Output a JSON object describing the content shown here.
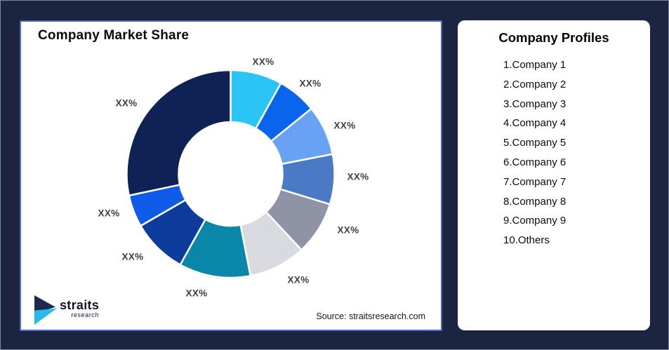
{
  "page": {
    "background_color": "#1b2541"
  },
  "chart_card": {
    "title": "Company Market Share",
    "source": "Source: straitsresearch.com",
    "logo": {
      "line1": "straits",
      "line2": "research"
    },
    "border_color": "#4b6cc3"
  },
  "profiles_card": {
    "title": "Company Profiles",
    "items": [
      "1.Company 1",
      "2.Company 2",
      "3.Company 3",
      "4.Company 4",
      "5.Company 5",
      "6.Company 6",
      "7.Company 7",
      "8.Company 8",
      "9.Company 9",
      "10.Others"
    ]
  },
  "chart_data": {
    "type": "pie",
    "subtype": "donut",
    "title": "Company Market Share",
    "start_angle": "12-o-clock",
    "direction": "clockwise",
    "inner_radius_ratio": 0.5,
    "values_hidden_as": "XX%",
    "segments": [
      {
        "name": "Company 1",
        "label": "XX%",
        "color": "#2bc5f5",
        "angle_deg": 29
      },
      {
        "name": "Company 2",
        "label": "XX%",
        "color": "#0a64ec",
        "angle_deg": 22
      },
      {
        "name": "Company 3",
        "label": "XX%",
        "color": "#69a1f4",
        "angle_deg": 28
      },
      {
        "name": "Company 4",
        "label": "XX%",
        "color": "#4a7ac6",
        "angle_deg": 28
      },
      {
        "name": "Company 5",
        "label": "XX%",
        "color": "#8e94a5",
        "angle_deg": 30
      },
      {
        "name": "Company 6",
        "label": "XX%",
        "color": "#d8dae0",
        "angle_deg": 32
      },
      {
        "name": "Company 7",
        "label": "XX%",
        "color": "#0a86a8",
        "angle_deg": 40
      },
      {
        "name": "Company 8",
        "label": "XX%",
        "color": "#0c3d9c",
        "angle_deg": 31
      },
      {
        "name": "Company 9",
        "label": "XX%",
        "color": "#0e5ce8",
        "angle_deg": 18
      },
      {
        "name": "Others",
        "label": "XX%",
        "color": "#0e2256",
        "angle_deg": 102
      }
    ]
  }
}
